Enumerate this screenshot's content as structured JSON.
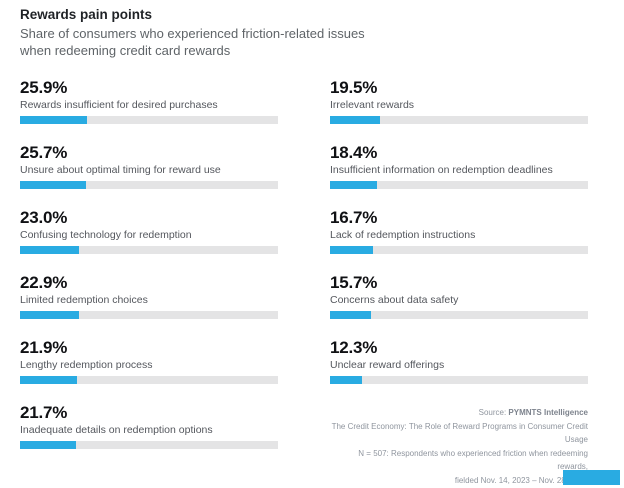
{
  "header": {
    "title": "Rewards pain points",
    "subtitle_line1": "Share of consumers who experienced friction-related issues",
    "subtitle_line2": "when redeeming credit card rewards"
  },
  "chart_data": {
    "type": "bar",
    "orientation": "horizontal",
    "unit": "percent",
    "scale_max": 100,
    "grid": false,
    "legend": false,
    "title": "Rewards pain points",
    "subtitle": "Share of consumers who experienced friction-related issues when redeeming credit card rewards",
    "categories": [
      "Rewards insufficient for desired purchases",
      "Unsure about optimal timing for reward use",
      "Confusing technology for redemption",
      "Limited redemption choices",
      "Lengthy redemption process",
      "Inadequate details on redemption options",
      "Irrelevant rewards",
      "Insufficient information on redemption deadlines",
      "Lack of redemption instructions",
      "Concerns about data safety",
      "Unclear reward offerings"
    ],
    "values": [
      25.9,
      25.7,
      23.0,
      22.9,
      21.9,
      21.7,
      19.5,
      18.4,
      16.7,
      15.7,
      12.3
    ],
    "bar_color": "#29ABE2",
    "track_color": "#E4E4E5",
    "layout": "two-column, left column items 1-6, right column items 7-11"
  },
  "columns": {
    "left": [
      {
        "value_label": "25.9%",
        "pct": 25.9,
        "label": "Rewards insufficient for desired purchases"
      },
      {
        "value_label": "25.7%",
        "pct": 25.7,
        "label": "Unsure about optimal timing for reward use"
      },
      {
        "value_label": "23.0%",
        "pct": 23.0,
        "label": "Confusing technology for redemption"
      },
      {
        "value_label": "22.9%",
        "pct": 22.9,
        "label": "Limited redemption choices"
      },
      {
        "value_label": "21.9%",
        "pct": 21.9,
        "label": "Lengthy redemption process"
      },
      {
        "value_label": "21.7%",
        "pct": 21.7,
        "label": "Inadequate details on redemption options"
      }
    ],
    "right": [
      {
        "value_label": "19.5%",
        "pct": 19.5,
        "label": "Irrelevant rewards"
      },
      {
        "value_label": "18.4%",
        "pct": 18.4,
        "label": "Insufficient information on redemption deadlines"
      },
      {
        "value_label": "16.7%",
        "pct": 16.7,
        "label": "Lack of redemption instructions"
      },
      {
        "value_label": "15.7%",
        "pct": 15.7,
        "label": "Concerns about data safety"
      },
      {
        "value_label": "12.3%",
        "pct": 12.3,
        "label": "Unclear reward offerings"
      }
    ]
  },
  "footer": {
    "source_prefix": "Source: ",
    "source_name": "PYMNTS Intelligence",
    "line2": "The Credit Economy: The Role of Reward Programs in Consumer Credit Usage",
    "line3": "N = 507: Respondents who experienced friction when redeeming rewards,",
    "line4": "fielded Nov. 14, 2023 – Nov. 28, 2023"
  },
  "colors": {
    "accent_blue": "#29ABE2",
    "bar_track": "#E4E4E5",
    "title_text": "#1F2226",
    "subtitle_text": "#5F6468",
    "label_text": "#54575D",
    "footer_text": "#8F959E"
  }
}
